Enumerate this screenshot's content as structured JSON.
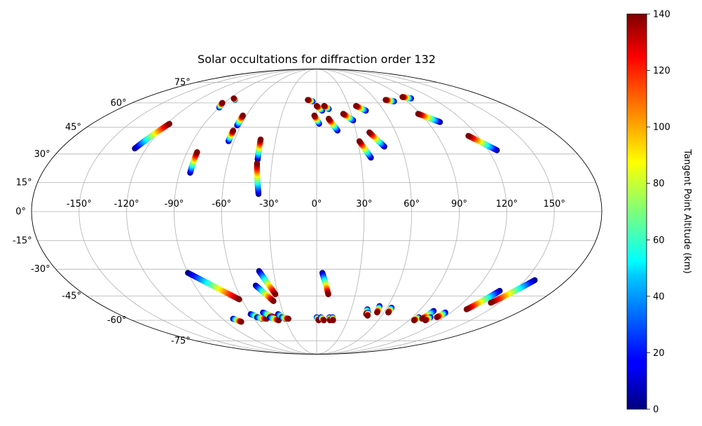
{
  "chart_data": {
    "type": "scatter",
    "projection": "mollweide",
    "title": "Solar occultations for diffraction order 132",
    "grid": true,
    "lon_ticks": [
      -150,
      -120,
      -90,
      -60,
      -30,
      0,
      30,
      60,
      90,
      120,
      150
    ],
    "lon_tick_labels": [
      "-150°",
      "-120°",
      "-90°",
      "-60°",
      "-30°",
      "0°",
      "30°",
      "60°",
      "90°",
      "120°",
      "150°"
    ],
    "lat_ticks": [
      -75,
      -60,
      -45,
      -30,
      -15,
      0,
      15,
      30,
      45,
      60,
      75
    ],
    "lat_tick_labels": [
      "-75°",
      "-60°",
      "-45°",
      "-30°",
      "-15°",
      "0°",
      "15°",
      "30°",
      "45°",
      "60°",
      "75°"
    ],
    "colorbar": {
      "label": "Tangent Point Altitude (km)",
      "range": [
        0,
        140
      ],
      "ticks": [
        0,
        20,
        40,
        60,
        80,
        100,
        120,
        140
      ],
      "tick_labels": [
        "0",
        "20",
        "40",
        "60",
        "80",
        "100",
        "120",
        "140"
      ],
      "colormap": "jet"
    },
    "tracks": [
      {
        "lon0": -128,
        "lat0": 33,
        "lon1": -118,
        "lat1": 47
      },
      {
        "lon0": -90,
        "lat0": 57,
        "lon1": -92,
        "lat1": 60
      },
      {
        "lon0": -83,
        "lat0": 62,
        "lon1": -86,
        "lat1": 63
      },
      {
        "lon0": -83,
        "lat0": 20,
        "lon1": -83,
        "lat1": 31
      },
      {
        "lon0": -64,
        "lat0": 37,
        "lon1": -64,
        "lat1": 43
      },
      {
        "lon0": -63,
        "lat0": 46,
        "lon1": -63,
        "lat1": 52
      },
      {
        "lon0": -40,
        "lat0": 27,
        "lon1": -41,
        "lat1": 38
      },
      {
        "lon0": -37,
        "lat0": 9,
        "lon1": -40,
        "lat1": 25
      },
      {
        "lon0": -4,
        "lat0": 61,
        "lon1": -9,
        "lat1": 62
      },
      {
        "lon0": 2,
        "lat0": 47,
        "lon1": -2,
        "lat1": 52
      },
      {
        "lon0": 5,
        "lat0": 55,
        "lon1": 0,
        "lat1": 58
      },
      {
        "lon0": 11,
        "lat0": 56,
        "lon1": 7,
        "lat1": 58
      },
      {
        "lon0": 16,
        "lat0": 43,
        "lon1": 10,
        "lat1": 50
      },
      {
        "lon0": 30,
        "lat0": 49,
        "lon1": 23,
        "lat1": 53
      },
      {
        "lon0": 44,
        "lat0": 55,
        "lon1": 37,
        "lat1": 58
      },
      {
        "lon0": 37,
        "lat0": 28,
        "lon1": 31,
        "lat1": 37
      },
      {
        "lon0": 48,
        "lat0": 34,
        "lon1": 40,
        "lat1": 42
      },
      {
        "lon0": 77,
        "lat0": 61,
        "lon1": 70,
        "lat1": 62
      },
      {
        "lon0": 98,
        "lat0": 63,
        "lon1": 91,
        "lat1": 64
      },
      {
        "lon0": 100,
        "lat0": 48,
        "lon1": 88,
        "lat1": 53
      },
      {
        "lon0": 126,
        "lat0": 32,
        "lon1": 113,
        "lat1": 40
      },
      {
        "lon0": -90,
        "lat0": -32,
        "lon1": -62,
        "lat1": -47
      },
      {
        "lon0": -40,
        "lat0": -31,
        "lon1": -32,
        "lat1": -44
      },
      {
        "lon0": -45,
        "lat0": -39,
        "lon1": -35,
        "lat1": -48
      },
      {
        "lon0": 4,
        "lat0": -32,
        "lon1": 9,
        "lat1": -44
      },
      {
        "lon0": -80,
        "lat0": -59,
        "lon1": -75,
        "lat1": -61
      },
      {
        "lon0": -60,
        "lat0": -56,
        "lon1": -52,
        "lat1": -59
      },
      {
        "lon0": -56,
        "lat0": -58,
        "lon1": -48,
        "lat1": -59
      },
      {
        "lon0": -48,
        "lat0": -55,
        "lon1": -40,
        "lat1": -58
      },
      {
        "lon0": -44,
        "lat0": -58,
        "lon1": -37,
        "lat1": -60
      },
      {
        "lon0": -35,
        "lat0": -56,
        "lon1": -30,
        "lat1": -59
      },
      {
        "lon0": -33,
        "lat0": -58,
        "lon1": -27,
        "lat1": -59
      },
      {
        "lon0": 0,
        "lat0": -58,
        "lon1": 2,
        "lat1": -60
      },
      {
        "lon0": 4,
        "lat0": -58,
        "lon1": 7,
        "lat1": -60
      },
      {
        "lon0": 12,
        "lat0": -58,
        "lon1": 13,
        "lat1": -60
      },
      {
        "lon0": 15,
        "lat0": -58,
        "lon1": 16,
        "lat1": -60
      },
      {
        "lon0": 44,
        "lat0": -53,
        "lon1": 45,
        "lat1": -56
      },
      {
        "lon0": 46,
        "lat0": -55,
        "lon1": 47,
        "lat1": -57
      },
      {
        "lon0": 53,
        "lat0": -51,
        "lon1": 54,
        "lat1": -55
      },
      {
        "lon0": 64,
        "lat0": -52,
        "lon1": 64,
        "lat1": -55
      },
      {
        "lon0": 96,
        "lat0": -58,
        "lon1": 95,
        "lat1": -60
      },
      {
        "lon0": 103,
        "lat0": -54,
        "lon1": 101,
        "lat1": -59
      },
      {
        "lon0": 107,
        "lat0": -58,
        "lon1": 106,
        "lat1": -60
      },
      {
        "lon0": 115,
        "lat0": -55,
        "lon1": 113,
        "lat1": -58
      },
      {
        "lon0": 139,
        "lat0": -42,
        "lon1": 130,
        "lat1": -53
      },
      {
        "lon0": 157,
        "lat0": -36,
        "lon1": 143,
        "lat1": -49
      }
    ]
  }
}
